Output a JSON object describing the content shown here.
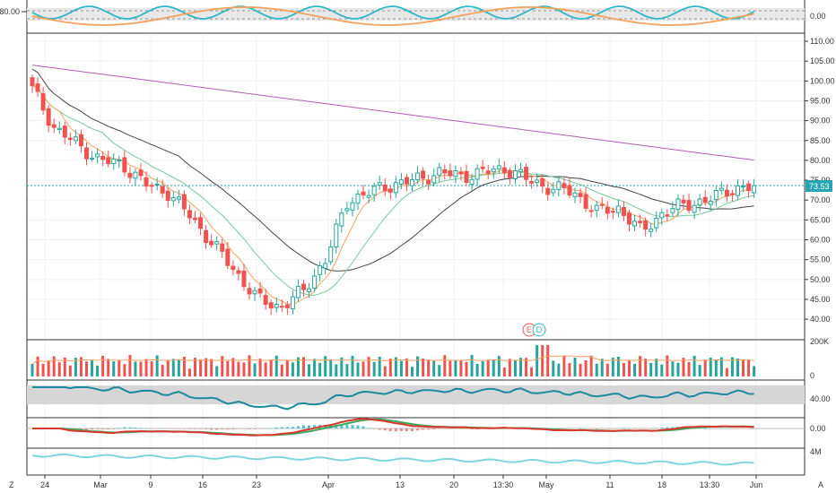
{
  "main_axis_labels": [
    "110.00",
    "105.00",
    "100.00",
    "95.00",
    "90.00",
    "85.00",
    "80.00",
    "75.00",
    "70.00",
    "65.00",
    "60.00",
    "55.00",
    "50.00",
    "45.00",
    "40.00"
  ],
  "price_tag": {
    "value": "73.53",
    "color": "#26a6b3"
  },
  "osc1": {
    "left_label": "80.00",
    "right_label": "0.00"
  },
  "volume_axis": {
    "top": "200K",
    "bottom": "0"
  },
  "rsi_axis": {
    "label": "40.00"
  },
  "macd_axis": {
    "label": "0.00"
  },
  "obv_axis": {
    "label": "4M"
  },
  "x_labels": [
    "24",
    "Mar",
    "9",
    "16",
    "23",
    "Apr",
    "13",
    "20",
    "13:30",
    "May",
    "11",
    "18",
    "13:30",
    "Jun"
  ],
  "markers": {
    "earnings": "E",
    "dividend": "D"
  },
  "corner_left": "Z",
  "corner_right": "A",
  "colors": {
    "up": "#26a69a",
    "down": "#ef5350",
    "ma_orange": "#f5a25d",
    "ma_green": "#7bc99a",
    "ma_black": "#444444",
    "ma_purple": "#b15fb5",
    "cyan": "#2eb8c4"
  },
  "chart_data": {
    "type": "candlestick",
    "x": [
      "24",
      "Mar",
      "9",
      "16",
      "23",
      "Apr",
      "13",
      "20",
      "13:30",
      "May",
      "11",
      "18",
      "13:30",
      "Jun"
    ],
    "ylim": [
      38,
      111
    ],
    "last_price": 73.53,
    "close_values": [
      98,
      88,
      84,
      80,
      79,
      74,
      72,
      66,
      59,
      52,
      45,
      43,
      47,
      55,
      70,
      72,
      74,
      75,
      77,
      76,
      77,
      78,
      75,
      73,
      72,
      67,
      68,
      62,
      67,
      69,
      70,
      73,
      73
    ]
  }
}
